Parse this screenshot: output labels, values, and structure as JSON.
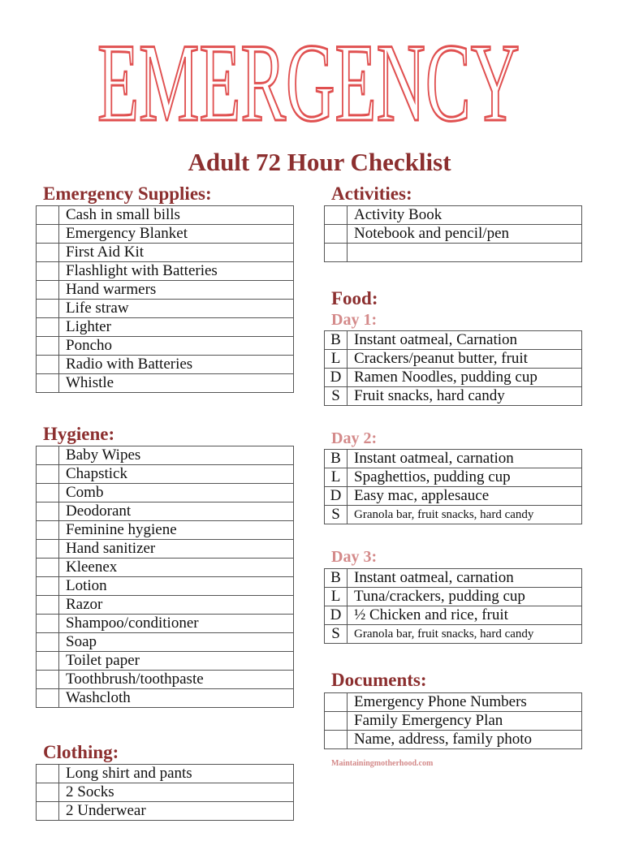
{
  "title": "EMERGENCY",
  "subtitle": "Adult 72 Hour Checklist",
  "colors": {
    "title_outline": "#e05050",
    "heading": "#8c2f2f",
    "day_heading": "#d48a8a"
  },
  "supplies": {
    "heading": "Emergency Supplies:",
    "items": [
      "Cash in small bills",
      "Emergency Blanket",
      "First Aid Kit",
      "Flashlight with Batteries",
      "Hand warmers",
      "Life straw",
      "Lighter",
      "Poncho",
      "Radio with Batteries",
      "Whistle"
    ]
  },
  "hygiene": {
    "heading": "Hygiene:",
    "items": [
      "Baby Wipes",
      "Chapstick",
      "Comb",
      "Deodorant",
      "Feminine hygiene",
      "Hand sanitizer",
      "Kleenex",
      "Lotion",
      "Razor",
      "Shampoo/conditioner",
      "Soap",
      "Toilet paper",
      "Toothbrush/toothpaste",
      "Washcloth"
    ]
  },
  "clothing": {
    "heading": "Clothing:",
    "items": [
      "Long shirt and pants",
      "2 Socks",
      "2 Underwear"
    ]
  },
  "activities": {
    "heading": "Activities:",
    "items": [
      "Activity Book",
      "Notebook and pencil/pen",
      ""
    ]
  },
  "food": {
    "heading": "Food:",
    "days": [
      {
        "label": "Day 1:",
        "meals": [
          {
            "m": "B",
            "t": "Instant oatmeal, Carnation"
          },
          {
            "m": "L",
            "t": "Crackers/peanut butter, fruit"
          },
          {
            "m": "D",
            "t": "Ramen Noodles, pudding cup"
          },
          {
            "m": "S",
            "t": "Fruit snacks, hard candy"
          }
        ]
      },
      {
        "label": "Day 2:",
        "meals": [
          {
            "m": "B",
            "t": "Instant oatmeal, carnation"
          },
          {
            "m": "L",
            "t": "Spaghettios, pudding cup"
          },
          {
            "m": "D",
            "t": "Easy mac, applesauce"
          },
          {
            "m": "S",
            "t": "Granola bar, fruit snacks, hard candy"
          }
        ]
      },
      {
        "label": "Day 3:",
        "meals": [
          {
            "m": "B",
            "t": "Instant oatmeal, carnation"
          },
          {
            "m": "L",
            "t": "Tuna/crackers, pudding cup"
          },
          {
            "m": "D",
            "t": "½ Chicken and rice, fruit"
          },
          {
            "m": "S",
            "t": "Granola bar, fruit snacks, hard candy"
          }
        ]
      }
    ]
  },
  "documents": {
    "heading": "Documents:",
    "items": [
      "Emergency Phone Numbers",
      "Family Emergency Plan",
      "Name, address, family photo"
    ]
  },
  "watermark": "Maintainingmotherhood.com"
}
